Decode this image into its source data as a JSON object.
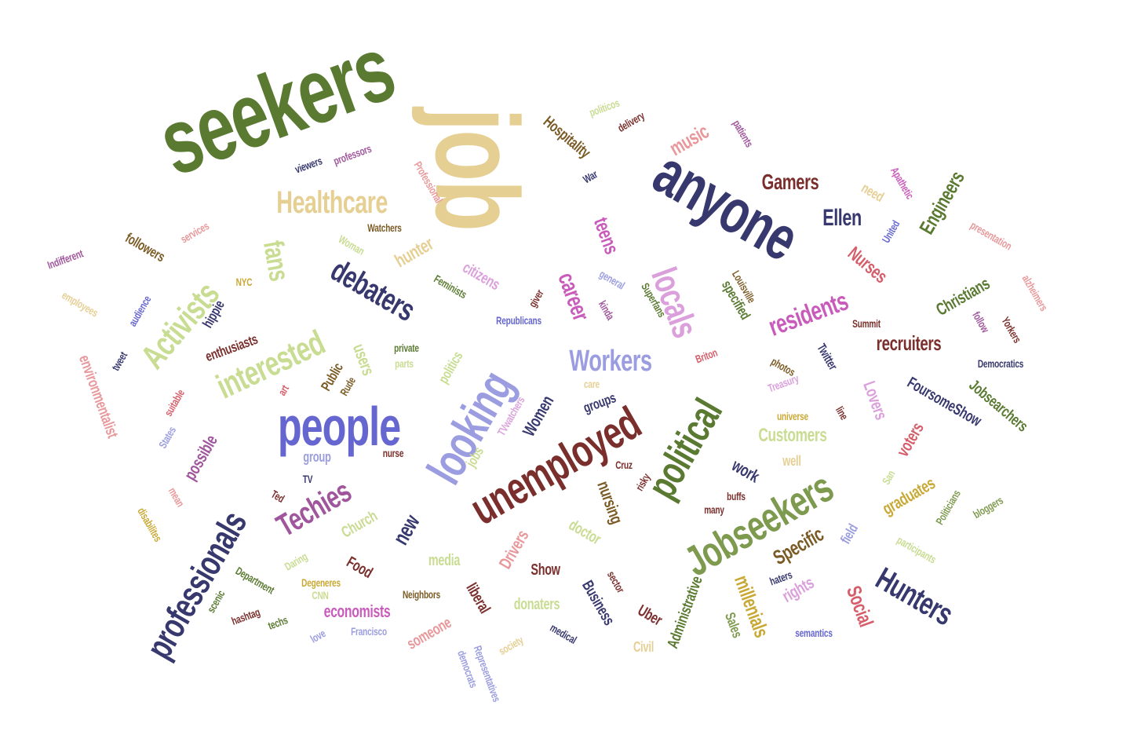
{
  "words": [
    {
      "text": "seekers",
      "color": "#5a7a32"
    },
    {
      "text": "job",
      "color": "#e6cf93"
    },
    {
      "text": "anyone",
      "color": "#37386e"
    },
    {
      "text": "people",
      "color": "#6566d0"
    },
    {
      "text": "looking",
      "color": "#9b9de0"
    },
    {
      "text": "unemployed",
      "color": "#7a2f2c"
    },
    {
      "text": "Jobseekers",
      "color": "#7e9a4e"
    },
    {
      "text": "political",
      "color": "#5a7a32"
    },
    {
      "text": "professionals",
      "color": "#37386e"
    },
    {
      "text": "Activists",
      "color": "#c8dc92"
    },
    {
      "text": "interested",
      "color": "#c8dc92"
    },
    {
      "text": "Healthcare",
      "color": "#e6cf93"
    },
    {
      "text": "debaters",
      "color": "#37386e"
    },
    {
      "text": "locals",
      "color": "#dba0dc"
    },
    {
      "text": "Techies",
      "color": "#a0569c"
    },
    {
      "text": "Hunters",
      "color": "#37386e"
    },
    {
      "text": "Workers",
      "color": "#9b9de0"
    },
    {
      "text": "fans",
      "color": "#c8dc92"
    },
    {
      "text": "residents",
      "color": "#c95bbb"
    },
    {
      "text": "career",
      "color": "#c95bbb"
    },
    {
      "text": "Ellen",
      "color": "#37386e"
    },
    {
      "text": "Gamers",
      "color": "#7a2f2c"
    },
    {
      "text": "music",
      "color": "#e8979a"
    },
    {
      "text": "teens",
      "color": "#c95bbb"
    },
    {
      "text": "Engineers",
      "color": "#5a7a32"
    },
    {
      "text": "Nurses",
      "color": "#d55e6a"
    },
    {
      "text": "recruiters",
      "color": "#7a2f2c"
    },
    {
      "text": "Social",
      "color": "#d55e6a"
    },
    {
      "text": "Specific",
      "color": "#7b5b25"
    },
    {
      "text": "millenials",
      "color": "#c9a935"
    },
    {
      "text": "new",
      "color": "#37386e"
    },
    {
      "text": "Customers",
      "color": "#c8dc92"
    },
    {
      "text": "economists",
      "color": "#c95bbb"
    },
    {
      "text": "hunter",
      "color": "#e6cf93"
    },
    {
      "text": "citizens",
      "color": "#dba0dc"
    },
    {
      "text": "environmentalist",
      "color": "#e8979a"
    },
    {
      "text": "Hospitality",
      "color": "#7b5b25"
    },
    {
      "text": "enthusiasts",
      "color": "#7a2f2c"
    },
    {
      "text": "Jobsearchers",
      "color": "#5a7a32"
    },
    {
      "text": "FoursomeShow",
      "color": "#37386e"
    },
    {
      "text": "Lovers",
      "color": "#dba0dc"
    },
    {
      "text": "voters",
      "color": "#d55e6a"
    },
    {
      "text": "Christians",
      "color": "#5a7a32"
    },
    {
      "text": "Drivers",
      "color": "#e8979a"
    },
    {
      "text": "Women",
      "color": "#37386e"
    },
    {
      "text": "nursing",
      "color": "#7b5b25"
    },
    {
      "text": "possible",
      "color": "#a0569c"
    },
    {
      "text": "users",
      "color": "#c8dc92"
    },
    {
      "text": "rights",
      "color": "#dba0dc"
    },
    {
      "text": "work",
      "color": "#37386e"
    },
    {
      "text": "graduates",
      "color": "#c9a935"
    },
    {
      "text": "Church",
      "color": "#c8dc92"
    },
    {
      "text": "media",
      "color": "#c8dc92"
    },
    {
      "text": "doctor",
      "color": "#c8dc92"
    },
    {
      "text": "someone",
      "color": "#e8979a"
    },
    {
      "text": "Show",
      "color": "#7a2f2c"
    },
    {
      "text": "Business",
      "color": "#37386e"
    },
    {
      "text": "Uber",
      "color": "#7a2f2c"
    },
    {
      "text": "Administrative",
      "color": "#5a7a32"
    },
    {
      "text": "donaters",
      "color": "#c8dc92"
    },
    {
      "text": "liberal",
      "color": "#7a2f2c"
    },
    {
      "text": "Food",
      "color": "#7a2f2c"
    },
    {
      "text": "Sales",
      "color": "#7e9a4e"
    },
    {
      "text": "groups",
      "color": "#37386e"
    },
    {
      "text": "group",
      "color": "#9b9de0"
    },
    {
      "text": "followers",
      "color": "#7b5b25"
    },
    {
      "text": "hippie",
      "color": "#37386e"
    },
    {
      "text": "Public",
      "color": "#7b5b25"
    },
    {
      "text": "politics",
      "color": "#c8dc92"
    },
    {
      "text": "jobs",
      "color": "#c8dc92"
    },
    {
      "text": "Civil",
      "color": "#e6cf93"
    },
    {
      "text": "field",
      "color": "#9b9de0"
    },
    {
      "text": "well",
      "color": "#e6cf93"
    },
    {
      "text": "specified",
      "color": "#5a7a32"
    },
    {
      "text": "need",
      "color": "#e6cf93"
    },
    {
      "text": "Twitter",
      "color": "#37386e"
    },
    {
      "text": "Republicans",
      "color": "#6566d0"
    },
    {
      "text": "Democratics",
      "color": "#37386e"
    },
    {
      "text": "Summit",
      "color": "#7a2f2c"
    },
    {
      "text": "photos",
      "color": "#7b5b25"
    },
    {
      "text": "Treasury",
      "color": "#dba0dc"
    },
    {
      "text": "universe",
      "color": "#c9a935"
    },
    {
      "text": "line",
      "color": "#7a2f2c"
    },
    {
      "text": "San",
      "color": "#c8dc92"
    },
    {
      "text": "Politicians",
      "color": "#7e9a4e"
    },
    {
      "text": "bloggers",
      "color": "#7e9a4e"
    },
    {
      "text": "participants",
      "color": "#c8dc92"
    },
    {
      "text": "semantics",
      "color": "#6566d0"
    },
    {
      "text": "haters",
      "color": "#37386e"
    },
    {
      "text": "buffs",
      "color": "#7a2f2c"
    },
    {
      "text": "many",
      "color": "#7a2f2c"
    },
    {
      "text": "risky",
      "color": "#7a2f2c"
    },
    {
      "text": "Cruz",
      "color": "#7a2f2c"
    },
    {
      "text": "sector",
      "color": "#7a2f2c"
    },
    {
      "text": "medical",
      "color": "#37386e"
    },
    {
      "text": "society",
      "color": "#e6cf93"
    },
    {
      "text": "Representatives",
      "color": "#9b9de0"
    },
    {
      "text": "democrats",
      "color": "#9b9de0"
    },
    {
      "text": "Francisco",
      "color": "#9b9de0"
    },
    {
      "text": "love",
      "color": "#9b9de0"
    },
    {
      "text": "Neighbors",
      "color": "#7b5b25"
    },
    {
      "text": "Degeneres",
      "color": "#c9a935"
    },
    {
      "text": "CNN",
      "color": "#c8dc92"
    },
    {
      "text": "Daring",
      "color": "#c8dc92"
    },
    {
      "text": "Department",
      "color": "#5a7a32"
    },
    {
      "text": "scenic",
      "color": "#5a7a32"
    },
    {
      "text": "hashtag",
      "color": "#7a2f2c"
    },
    {
      "text": "techs",
      "color": "#5a7a32"
    },
    {
      "text": "Ted",
      "color": "#7a2f2c"
    },
    {
      "text": "TV",
      "color": "#37386e"
    },
    {
      "text": "nurse",
      "color": "#7a2f2c"
    },
    {
      "text": "TVwatchers",
      "color": "#dba0dc"
    },
    {
      "text": "care",
      "color": "#e6cf93"
    },
    {
      "text": "parts",
      "color": "#c8dc92"
    },
    {
      "text": "private",
      "color": "#5a7a32"
    },
    {
      "text": "Rude",
      "color": "#7b5b25"
    },
    {
      "text": "art",
      "color": "#d55e6a"
    },
    {
      "text": "suitable",
      "color": "#d55e6a"
    },
    {
      "text": "States",
      "color": "#9b9de0"
    },
    {
      "text": "mean",
      "color": "#e8979a"
    },
    {
      "text": "disabilites",
      "color": "#c9a935"
    },
    {
      "text": "tweet",
      "color": "#37386e"
    },
    {
      "text": "audience",
      "color": "#6566d0"
    },
    {
      "text": "employees",
      "color": "#e6cf93"
    },
    {
      "text": "Indifferent",
      "color": "#a0569c"
    },
    {
      "text": "services",
      "color": "#e8979a"
    },
    {
      "text": "NYC",
      "color": "#c9a935"
    },
    {
      "text": "Woman",
      "color": "#c8dc92"
    },
    {
      "text": "Watchers",
      "color": "#7b5b25"
    },
    {
      "text": "Feminists",
      "color": "#5a7a32"
    },
    {
      "text": "giver",
      "color": "#7a2f2c"
    },
    {
      "text": "general",
      "color": "#9b9de0"
    },
    {
      "text": "kinda",
      "color": "#a0569c"
    },
    {
      "text": "Superfans",
      "color": "#5a7a32"
    },
    {
      "text": "Briton",
      "color": "#d55e6a"
    },
    {
      "text": "Louisville",
      "color": "#7b5b25"
    },
    {
      "text": "United",
      "color": "#6566d0"
    },
    {
      "text": "Apathetic",
      "color": "#c95bbb"
    },
    {
      "text": "presentation",
      "color": "#e8979a"
    },
    {
      "text": "alzheimers",
      "color": "#e8979a"
    },
    {
      "text": "follow",
      "color": "#a0569c"
    },
    {
      "text": "Yorkers",
      "color": "#7a2f2c"
    },
    {
      "text": "patients",
      "color": "#a0569c"
    },
    {
      "text": "politicos",
      "color": "#c8dc92"
    },
    {
      "text": "delivery",
      "color": "#7a2f2c"
    },
    {
      "text": "War",
      "color": "#37386e"
    },
    {
      "text": "Professional",
      "color": "#e8979a"
    },
    {
      "text": "professors",
      "color": "#a0569c"
    },
    {
      "text": "viewers",
      "color": "#37386e"
    }
  ]
}
